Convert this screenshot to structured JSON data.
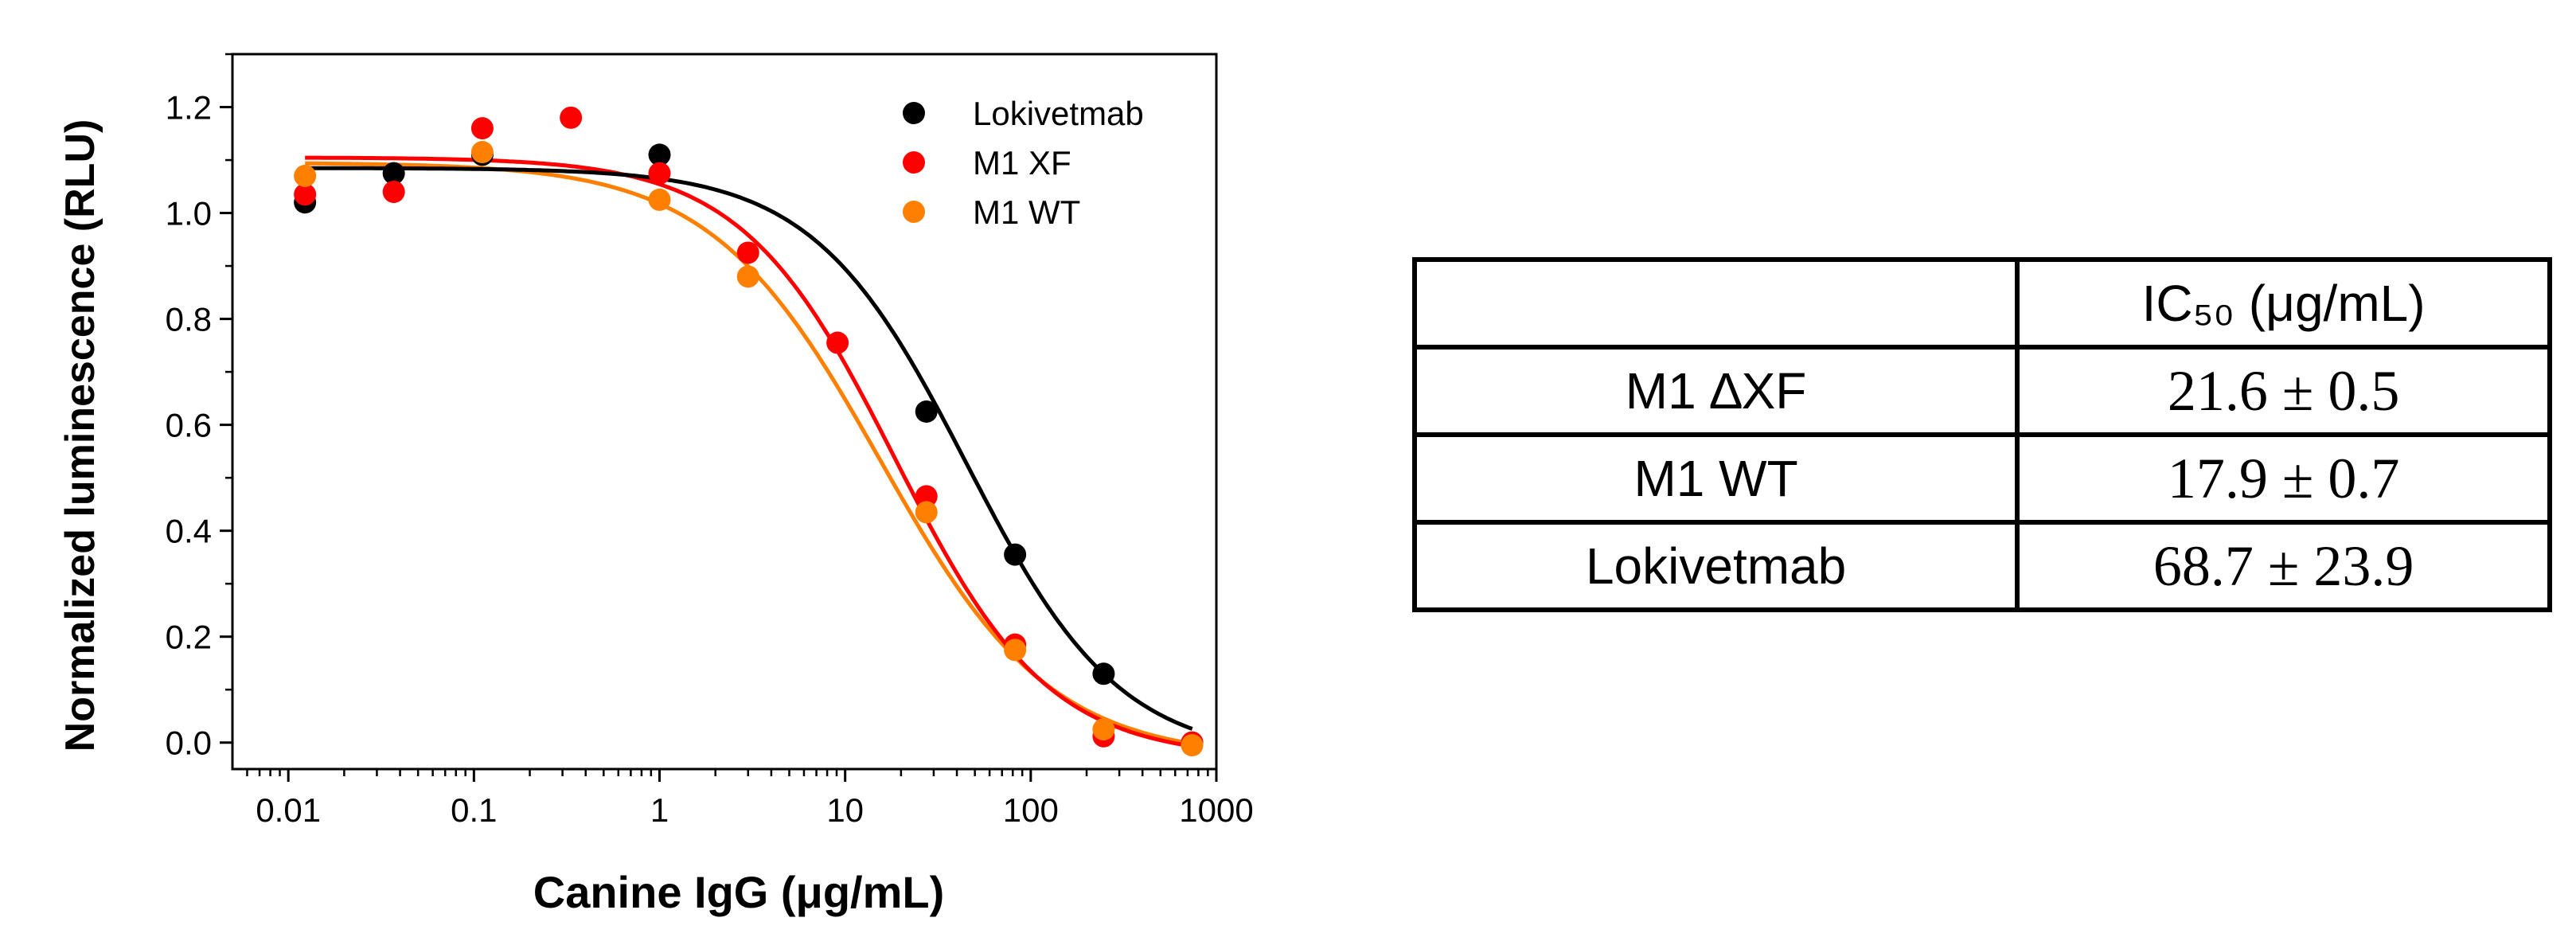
{
  "chart_data": {
    "type": "scatter",
    "xlabel": "Canine IgG (μg/mL)",
    "ylabel": "Normalized luminescence (RLU)",
    "xscale": "log",
    "xlim": [
      0.005,
      1000
    ],
    "ylim": [
      -0.05,
      1.3
    ],
    "x_ticks": [
      0.01,
      0.1,
      1,
      10,
      100,
      1000
    ],
    "x_tick_labels": [
      "0.01",
      "0.1",
      "1",
      "10",
      "100",
      "1000"
    ],
    "y_ticks": [
      0.0,
      0.2,
      0.4,
      0.6,
      0.8,
      1.0,
      1.2
    ],
    "y_tick_labels": [
      "0.0",
      "0.2",
      "0.4",
      "0.6",
      "0.8",
      "1.0",
      "1.2"
    ],
    "grid": false,
    "legend_position": "top-right",
    "series": [
      {
        "name": "Lokivetmab",
        "color": "#000000",
        "points": [
          [
            0.0123,
            1.02
          ],
          [
            0.037,
            1.075
          ],
          [
            0.111,
            1.11
          ],
          [
            1.0,
            1.11
          ],
          [
            27.4,
            0.625
          ],
          [
            82.3,
            0.355
          ],
          [
            247,
            0.13
          ],
          [
            740,
            0.0
          ]
        ],
        "fit": {
          "top": 1.085,
          "bottom": -0.03,
          "ic50": 45,
          "hill": 1.05
        }
      },
      {
        "name": "M1 XF",
        "color": "#ff0000",
        "points": [
          [
            0.0123,
            1.035
          ],
          [
            0.037,
            1.04
          ],
          [
            0.111,
            1.16
          ],
          [
            0.333,
            1.18
          ],
          [
            1.0,
            1.075
          ],
          [
            3.0,
            0.925
          ],
          [
            9.1,
            0.755
          ],
          [
            27.4,
            0.465
          ],
          [
            82.3,
            0.185
          ],
          [
            247,
            0.012
          ],
          [
            740,
            0.0
          ]
        ],
        "fit": {
          "top": 1.105,
          "bottom": -0.03,
          "ic50": 18.5,
          "hill": 1.05
        }
      },
      {
        "name": "M1 WT",
        "color": "#ff8000",
        "points": [
          [
            0.0123,
            1.07
          ],
          [
            0.111,
            1.115
          ],
          [
            1.0,
            1.025
          ],
          [
            3.0,
            0.88
          ],
          [
            27.4,
            0.435
          ],
          [
            82.3,
            0.175
          ],
          [
            247,
            0.025
          ],
          [
            740,
            -0.005
          ]
        ],
        "fit": {
          "top": 1.095,
          "bottom": -0.03,
          "ic50": 15.5,
          "hill": 0.95
        }
      }
    ]
  },
  "table": {
    "header": [
      "",
      "IC₅₀ (μg/mL)"
    ],
    "rows": [
      {
        "name": "M1 ∆XF",
        "value": "21.6 ± 0.5"
      },
      {
        "name": "M1 WT",
        "value": "17.9 ± 0.7"
      },
      {
        "name": "Lokivetmab",
        "value": "68.7 ± 23.9"
      }
    ]
  }
}
